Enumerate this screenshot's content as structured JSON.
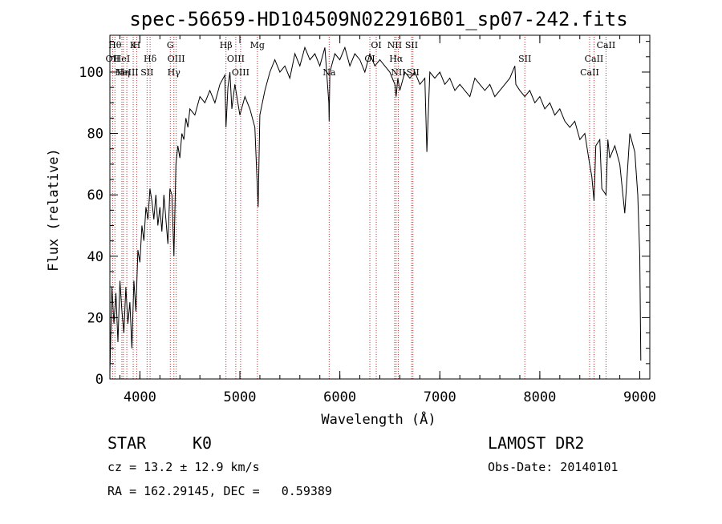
{
  "chart_data": {
    "type": "line",
    "title": "spec-56659-HD104509N022916B01_sp07-242.fits",
    "xlabel": "Wavelength (Å)",
    "ylabel": "Flux (relative)",
    "xlim": [
      3700,
      9100
    ],
    "ylim": [
      0,
      112
    ],
    "xticks": [
      4000,
      5000,
      6000,
      7000,
      8000,
      9000
    ],
    "yticks": [
      0,
      20,
      40,
      60,
      80,
      100
    ],
    "grid": false,
    "series": [
      {
        "x": [
          3700,
          3720,
          3740,
          3760,
          3780,
          3800,
          3820,
          3840,
          3860,
          3880,
          3900,
          3920,
          3940,
          3960,
          3980,
          4000,
          4020,
          4040,
          4060,
          4080,
          4100,
          4120,
          4140,
          4160,
          4180,
          4200,
          4220,
          4240,
          4260,
          4280,
          4300,
          4320,
          4340,
          4360,
          4380,
          4400,
          4420,
          4440,
          4460,
          4480,
          4500,
          4550,
          4600,
          4650,
          4700,
          4750,
          4800,
          4850,
          4861,
          4880,
          4900,
          4920,
          4950,
          5000,
          5050,
          5100,
          5150,
          5170,
          5183,
          5200,
          5250,
          5300,
          5350,
          5400,
          5450,
          5500,
          5550,
          5600,
          5650,
          5700,
          5750,
          5800,
          5850,
          5890,
          5893,
          5900,
          5950,
          6000,
          6050,
          6100,
          6150,
          6200,
          6250,
          6300,
          6350,
          6400,
          6450,
          6500,
          6550,
          6563,
          6580,
          6600,
          6650,
          6700,
          6750,
          6800,
          6850,
          6870,
          6900,
          6950,
          7000,
          7050,
          7100,
          7150,
          7200,
          7250,
          7300,
          7350,
          7400,
          7450,
          7500,
          7550,
          7600,
          7650,
          7700,
          7750,
          7760,
          7800,
          7850,
          7900,
          7950,
          8000,
          8050,
          8100,
          8150,
          8200,
          8250,
          8300,
          8350,
          8400,
          8450,
          8498,
          8520,
          8542,
          8560,
          8600,
          8620,
          8662,
          8680,
          8700,
          8750,
          8800,
          8850,
          8900,
          8950,
          8980,
          9000,
          9010
        ],
        "y": [
          2,
          30,
          18,
          28,
          12,
          32,
          22,
          15,
          30,
          18,
          25,
          10,
          32,
          22,
          42,
          38,
          50,
          45,
          56,
          52,
          62,
          58,
          52,
          60,
          50,
          56,
          48,
          60,
          52,
          44,
          62,
          60,
          40,
          70,
          76,
          72,
          80,
          78,
          85,
          82,
          88,
          86,
          92,
          90,
          94,
          90,
          96,
          99,
          82,
          95,
          100,
          88,
          96,
          86,
          92,
          88,
          82,
          66,
          56,
          86,
          94,
          100,
          104,
          100,
          102,
          98,
          106,
          102,
          108,
          104,
          106,
          102,
          108,
          90,
          84,
          100,
          106,
          104,
          108,
          102,
          106,
          104,
          100,
          106,
          102,
          104,
          102,
          100,
          96,
          92,
          98,
          94,
          100,
          98,
          100,
          96,
          98,
          74,
          100,
          98,
          100,
          96,
          98,
          94,
          96,
          94,
          92,
          98,
          96,
          94,
          96,
          92,
          94,
          96,
          98,
          102,
          96,
          94,
          92,
          94,
          90,
          92,
          88,
          90,
          86,
          88,
          84,
          82,
          84,
          78,
          80,
          70,
          66,
          58,
          76,
          78,
          62,
          60,
          78,
          72,
          76,
          70,
          54,
          80,
          74,
          60,
          40,
          6
        ]
      }
    ],
    "lines": [
      {
        "x": 3750,
        "label": "Hθ",
        "row": 1
      },
      {
        "x": 3727,
        "label": "OII",
        "row": 2
      },
      {
        "x": 3835,
        "label": "Hη",
        "row": 3
      },
      {
        "x": 3820,
        "label": "HeI",
        "row": 2
      },
      {
        "x": 3869,
        "label": "NeIII",
        "row": 3
      },
      {
        "x": 3933,
        "label": "K",
        "row": 1
      },
      {
        "x": 3968,
        "label": "H",
        "row": 1
      },
      {
        "x": 4102,
        "label": "Hδ",
        "row": 2
      },
      {
        "x": 4072,
        "label": "SII",
        "row": 3
      },
      {
        "x": 4304,
        "label": "G",
        "row": 1
      },
      {
        "x": 4363,
        "label": "OIII",
        "row": 2
      },
      {
        "x": 4340,
        "label": "Hγ",
        "row": 3
      },
      {
        "x": 4861,
        "label": "Hβ",
        "row": 1
      },
      {
        "x": 4959,
        "label": "OIII",
        "row": 2
      },
      {
        "x": 5007,
        "label": "OIII",
        "row": 3
      },
      {
        "x": 5175,
        "label": "Mg",
        "row": 1
      },
      {
        "x": 5893,
        "label": "Na",
        "row": 3
      },
      {
        "x": 6300,
        "label": "OI",
        "row": 2
      },
      {
        "x": 6364,
        "label": "OI",
        "row": 1
      },
      {
        "x": 6548,
        "label": "NII",
        "row": 1
      },
      {
        "x": 6563,
        "label": "Hα",
        "row": 2
      },
      {
        "x": 6584,
        "label": "NII",
        "row": 3
      },
      {
        "x": 6717,
        "label": "SII",
        "row": 1
      },
      {
        "x": 6731,
        "label": "SII",
        "row": 3
      },
      {
        "x": 7850,
        "label": "SII",
        "row": 2
      },
      {
        "x": 8498,
        "label": "CaII",
        "row": 3
      },
      {
        "x": 8542,
        "label": "CaII",
        "row": 2
      },
      {
        "x": 8662,
        "label": "CaII",
        "row": 1
      }
    ]
  },
  "footer": {
    "class_label": "STAR",
    "subclass": "K0",
    "survey": "LAMOST DR2",
    "cz_line": "cz = 13.2 ± 12.9 km/s",
    "obs_date": "Obs-Date: 20140101",
    "radec_line": "RA = 162.29145, DEC =   0.59389"
  }
}
